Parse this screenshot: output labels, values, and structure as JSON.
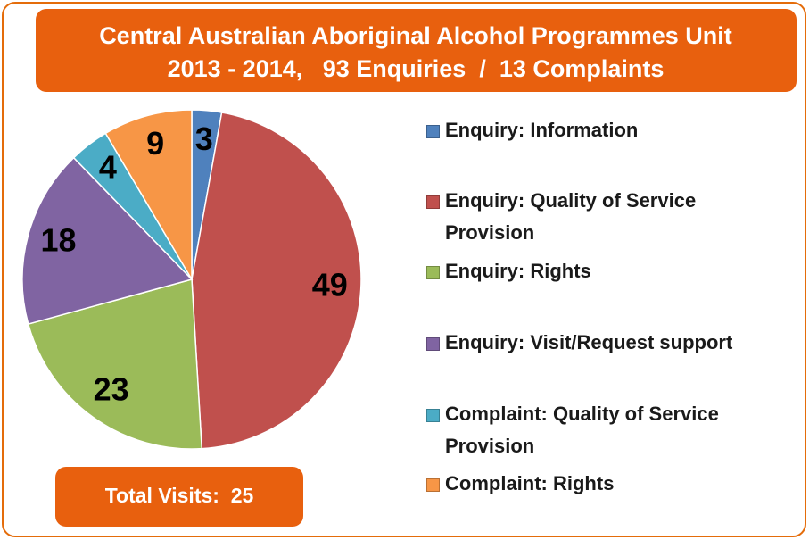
{
  "chart_data": {
    "type": "pie",
    "title": "Central Australian Aboriginal Alcohol Programmes Unit",
    "subtitle": "2013 - 2014,   93 Enquiries  /  13 Complaints",
    "annotation": "Total Visits:  25",
    "categories": [
      "Enquiry: Information",
      "Enquiry: Quality of Service Provision",
      "Enquiry: Rights",
      "Enquiry: Visit/Request support",
      "Complaint: Quality of Service Provision",
      "Complaint: Rights"
    ],
    "values": [
      3,
      49,
      23,
      18,
      4,
      9
    ],
    "colors": [
      "#4f81bd",
      "#c0504d",
      "#9bbb59",
      "#8064a2",
      "#4bacc6",
      "#f79646"
    ],
    "legend": "right"
  }
}
